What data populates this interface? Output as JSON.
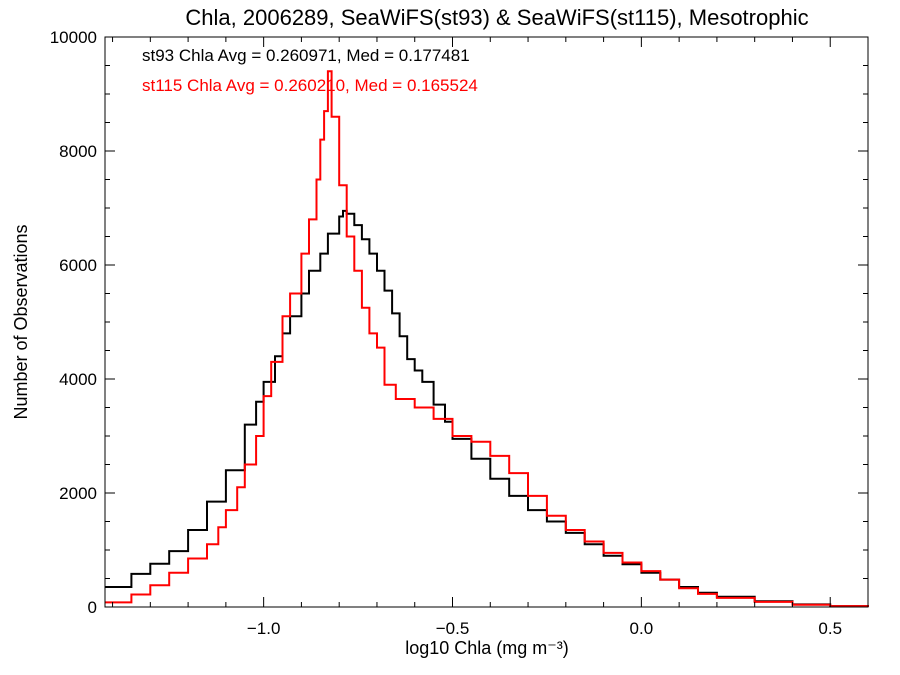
{
  "chart_data": {
    "type": "line",
    "step": true,
    "title": "Chla, 2006289, SeaWiFS(st93) & SeaWiFS(st115), Mesotrophic",
    "xlabel": "log10 Chla (mg m⁻³)",
    "ylabel": "Number of Observations",
    "xlim": [
      -1.42,
      0.6
    ],
    "ylim": [
      0,
      10000
    ],
    "xticks": [
      -1.0,
      -0.5,
      0.0,
      0.5
    ],
    "xtick_labels": [
      "−1.0",
      "−0.5",
      "0.0",
      "0.5"
    ],
    "yticks": [
      0,
      2000,
      4000,
      6000,
      8000,
      10000
    ],
    "ytick_labels": [
      "0",
      "2000",
      "4000",
      "6000",
      "8000",
      "10000"
    ],
    "legend": [
      {
        "text": "st93 Chla Avg = 0.260971, Med = 0.177481",
        "color": "#000000"
      },
      {
        "text": "st115 Chla Avg = 0.260210, Med = 0.165524",
        "color": "#ff0000"
      }
    ],
    "series": [
      {
        "name": "st93",
        "color": "#000000",
        "x": [
          -1.42,
          -1.35,
          -1.3,
          -1.25,
          -1.2,
          -1.15,
          -1.1,
          -1.05,
          -1.02,
          -1.0,
          -0.97,
          -0.95,
          -0.93,
          -0.9,
          -0.88,
          -0.85,
          -0.83,
          -0.8,
          -0.79,
          -0.78,
          -0.76,
          -0.74,
          -0.72,
          -0.7,
          -0.68,
          -0.66,
          -0.64,
          -0.62,
          -0.6,
          -0.58,
          -0.55,
          -0.52,
          -0.5,
          -0.45,
          -0.4,
          -0.35,
          -0.3,
          -0.25,
          -0.2,
          -0.15,
          -0.1,
          -0.05,
          0.0,
          0.05,
          0.1,
          0.15,
          0.2,
          0.3,
          0.4,
          0.5,
          0.6
        ],
        "y": [
          350,
          580,
          760,
          980,
          1350,
          1850,
          2400,
          3200,
          3600,
          3950,
          4400,
          4800,
          5100,
          5500,
          5900,
          6200,
          6550,
          6850,
          6950,
          6900,
          6700,
          6450,
          6200,
          5900,
          5550,
          5150,
          4750,
          4350,
          4150,
          3950,
          3550,
          3250,
          2950,
          2600,
          2250,
          1950,
          1700,
          1500,
          1300,
          1100,
          900,
          750,
          600,
          480,
          350,
          250,
          180,
          100,
          45,
          15,
          0
        ]
      },
      {
        "name": "st115",
        "color": "#ff0000",
        "x": [
          -1.42,
          -1.35,
          -1.3,
          -1.25,
          -1.2,
          -1.15,
          -1.12,
          -1.1,
          -1.07,
          -1.05,
          -1.02,
          -1.0,
          -0.98,
          -0.95,
          -0.93,
          -0.9,
          -0.88,
          -0.86,
          -0.85,
          -0.84,
          -0.83,
          -0.82,
          -0.8,
          -0.78,
          -0.76,
          -0.74,
          -0.72,
          -0.7,
          -0.68,
          -0.65,
          -0.6,
          -0.55,
          -0.5,
          -0.45,
          -0.4,
          -0.35,
          -0.3,
          -0.25,
          -0.2,
          -0.15,
          -0.1,
          -0.05,
          0.0,
          0.05,
          0.1,
          0.15,
          0.2,
          0.3,
          0.4,
          0.5,
          0.6
        ],
        "y": [
          80,
          220,
          380,
          600,
          850,
          1100,
          1400,
          1700,
          2100,
          2500,
          3000,
          3700,
          4300,
          5100,
          5500,
          6200,
          6800,
          7500,
          8200,
          8700,
          9400,
          8600,
          7400,
          6500,
          5900,
          5250,
          4800,
          4550,
          3900,
          3650,
          3500,
          3300,
          3000,
          2900,
          2650,
          2350,
          1950,
          1600,
          1350,
          1150,
          950,
          780,
          630,
          480,
          330,
          230,
          160,
          90,
          40,
          15,
          0
        ]
      }
    ]
  }
}
